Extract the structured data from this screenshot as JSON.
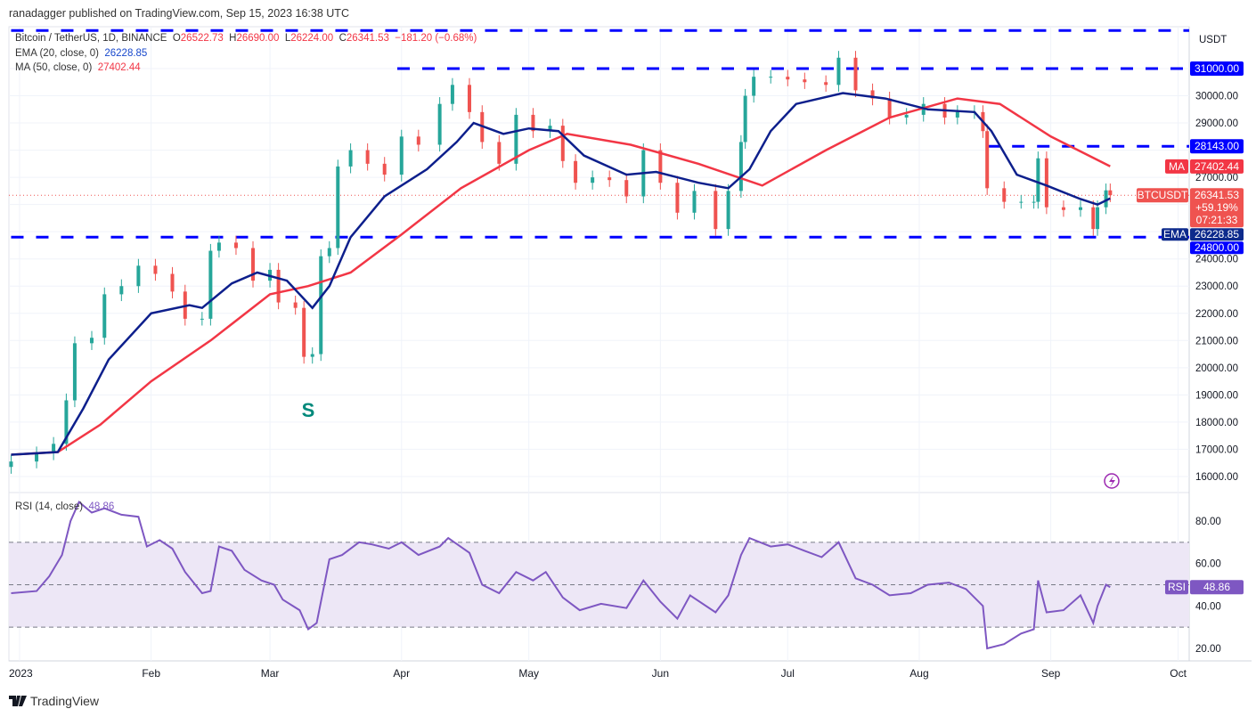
{
  "header": {
    "published": "ranadagger published on TradingView.com, Sep 15, 2023 16:38 UTC",
    "symbol": "Bitcoin / TetherUS, 1D, BINANCE",
    "o_label": "O",
    "o": "26522.73",
    "h_label": "H",
    "h": "26690.00",
    "l_label": "L",
    "l": "26224.00",
    "c_label": "C",
    "c": "26341.53",
    "change": "−181.20 (−0.68%)",
    "ema_label": "EMA (20, close, 0)",
    "ema_value": "26228.85",
    "ma_label": "MA (50, close, 0)",
    "ma_value": "27402.44",
    "rsi_label": "RSI (14, close)",
    "rsi_value": "48.86"
  },
  "footer": {
    "brand": "TradingView",
    "icon": "tradingview-logo-icon"
  },
  "colors": {
    "up": "#26a69a",
    "down": "#ef5350",
    "ema": "#0d1f8c",
    "ma": "#f23645",
    "levels": "#0000ff",
    "rsi": "#7e57c2",
    "rsi_band": "#ede7f6"
  },
  "chart_data": [
    {
      "type": "candlestick",
      "currency_label": "USDT",
      "ylim": [
        15600,
        32500
      ],
      "y_ticks": [
        "16000.00",
        "17000.00",
        "18000.00",
        "19000.00",
        "20000.00",
        "21000.00",
        "22000.00",
        "23000.00",
        "24000.00",
        "27000.00",
        "29000.00",
        "30000.00"
      ],
      "x_ticks": [
        {
          "label": "2023",
          "date": "2023-01-01"
        },
        {
          "label": "Feb",
          "date": "2023-02-01"
        },
        {
          "label": "Mar",
          "date": "2023-03-01"
        },
        {
          "label": "Apr",
          "date": "2023-04-01"
        },
        {
          "label": "May",
          "date": "2023-05-01"
        },
        {
          "label": "Jun",
          "date": "2023-06-01"
        },
        {
          "label": "Jul",
          "date": "2023-07-01"
        },
        {
          "label": "Aug",
          "date": "2023-08-01"
        },
        {
          "label": "Sep",
          "date": "2023-09-01"
        },
        {
          "label": "Oct",
          "date": "2023-10-01"
        }
      ],
      "close": [
        [
          "2022-12-30",
          16550
        ],
        [
          "2023-01-05",
          16850
        ],
        [
          "2023-01-09",
          17200
        ],
        [
          "2023-01-12",
          18800
        ],
        [
          "2023-01-14",
          20900
        ],
        [
          "2023-01-18",
          21100
        ],
        [
          "2023-01-21",
          22700
        ],
        [
          "2023-01-25",
          23000
        ],
        [
          "2023-01-29",
          23750
        ],
        [
          "2023-02-02",
          23450
        ],
        [
          "2023-02-06",
          22800
        ],
        [
          "2023-02-09",
          21800
        ],
        [
          "2023-02-13",
          21800
        ],
        [
          "2023-02-15",
          24300
        ],
        [
          "2023-02-17",
          24600
        ],
        [
          "2023-02-21",
          24400
        ],
        [
          "2023-02-25",
          23200
        ],
        [
          "2023-03-01",
          23600
        ],
        [
          "2023-03-03",
          22400
        ],
        [
          "2023-03-07",
          22200
        ],
        [
          "2023-03-09",
          20400
        ],
        [
          "2023-03-11",
          20500
        ],
        [
          "2023-03-13",
          24100
        ],
        [
          "2023-03-15",
          24400
        ],
        [
          "2023-03-17",
          27400
        ],
        [
          "2023-03-20",
          28000
        ],
        [
          "2023-03-24",
          27500
        ],
        [
          "2023-03-28",
          27100
        ],
        [
          "2023-04-01",
          28500
        ],
        [
          "2023-04-05",
          28200
        ],
        [
          "2023-04-10",
          29700
        ],
        [
          "2023-04-13",
          30400
        ],
        [
          "2023-04-17",
          29400
        ],
        [
          "2023-04-20",
          28300
        ],
        [
          "2023-04-24",
          27500
        ],
        [
          "2023-04-28",
          29300
        ],
        [
          "2023-05-02",
          28700
        ],
        [
          "2023-05-06",
          28900
        ],
        [
          "2023-05-09",
          27600
        ],
        [
          "2023-05-12",
          26800
        ],
        [
          "2023-05-16",
          27000
        ],
        [
          "2023-05-20",
          26900
        ],
        [
          "2023-05-24",
          26300
        ],
        [
          "2023-05-28",
          28000
        ],
        [
          "2023-06-01",
          26800
        ],
        [
          "2023-06-05",
          25700
        ],
        [
          "2023-06-09",
          26500
        ],
        [
          "2023-06-14",
          25100
        ],
        [
          "2023-06-17",
          26500
        ],
        [
          "2023-06-20",
          28300
        ],
        [
          "2023-06-21",
          30000
        ],
        [
          "2023-06-23",
          30700
        ],
        [
          "2023-06-27",
          30700
        ],
        [
          "2023-07-01",
          30600
        ],
        [
          "2023-07-05",
          30500
        ],
        [
          "2023-07-10",
          30400
        ],
        [
          "2023-07-13",
          31400
        ],
        [
          "2023-07-17",
          30200
        ],
        [
          "2023-07-21",
          29900
        ],
        [
          "2023-07-25",
          29200
        ],
        [
          "2023-07-29",
          29300
        ],
        [
          "2023-08-02",
          29700
        ],
        [
          "2023-08-07",
          29200
        ],
        [
          "2023-08-10",
          29400
        ],
        [
          "2023-08-14",
          29400
        ],
        [
          "2023-08-16",
          28700
        ],
        [
          "2023-08-17",
          26600
        ],
        [
          "2023-08-21",
          26100
        ],
        [
          "2023-08-25",
          26100
        ],
        [
          "2023-08-28",
          26100
        ],
        [
          "2023-08-29",
          27700
        ],
        [
          "2023-08-31",
          25900
        ],
        [
          "2023-09-04",
          25800
        ],
        [
          "2023-09-08",
          25900
        ],
        [
          "2023-09-11",
          25100
        ],
        [
          "2023-09-12",
          25900
        ],
        [
          "2023-09-14",
          26522.73
        ],
        [
          "2023-09-15",
          26341.53
        ]
      ],
      "ema20": [
        [
          "2022-12-30",
          16800
        ],
        [
          "2023-01-10",
          16900
        ],
        [
          "2023-01-16",
          18500
        ],
        [
          "2023-01-22",
          20300
        ],
        [
          "2023-02-01",
          22000
        ],
        [
          "2023-02-10",
          22300
        ],
        [
          "2023-02-13",
          22200
        ],
        [
          "2023-02-20",
          23100
        ],
        [
          "2023-02-26",
          23500
        ],
        [
          "2023-03-05",
          23200
        ],
        [
          "2023-03-11",
          22200
        ],
        [
          "2023-03-15",
          23000
        ],
        [
          "2023-03-20",
          24800
        ],
        [
          "2023-03-28",
          26300
        ],
        [
          "2023-04-07",
          27300
        ],
        [
          "2023-04-14",
          28300
        ],
        [
          "2023-04-18",
          29000
        ],
        [
          "2023-04-25",
          28600
        ],
        [
          "2023-05-01",
          28800
        ],
        [
          "2023-05-08",
          28700
        ],
        [
          "2023-05-14",
          27800
        ],
        [
          "2023-05-24",
          27100
        ],
        [
          "2023-05-31",
          27200
        ],
        [
          "2023-06-10",
          26800
        ],
        [
          "2023-06-17",
          26600
        ],
        [
          "2023-06-22",
          27300
        ],
        [
          "2023-06-27",
          28700
        ],
        [
          "2023-07-03",
          29700
        ],
        [
          "2023-07-14",
          30100
        ],
        [
          "2023-07-24",
          29900
        ],
        [
          "2023-08-03",
          29500
        ],
        [
          "2023-08-14",
          29400
        ],
        [
          "2023-08-18",
          28700
        ],
        [
          "2023-08-24",
          27100
        ],
        [
          "2023-08-31",
          26700
        ],
        [
          "2023-09-08",
          26200
        ],
        [
          "2023-09-12",
          26000
        ],
        [
          "2023-09-15",
          26228.85
        ]
      ],
      "ma50": [
        [
          "2022-12-30",
          16800
        ],
        [
          "2023-01-10",
          16900
        ],
        [
          "2023-01-20",
          17900
        ],
        [
          "2023-02-01",
          19500
        ],
        [
          "2023-02-15",
          21000
        ],
        [
          "2023-03-01",
          22700
        ],
        [
          "2023-03-10",
          23000
        ],
        [
          "2023-03-20",
          23500
        ],
        [
          "2023-04-01",
          24900
        ],
        [
          "2023-04-15",
          26600
        ],
        [
          "2023-05-01",
          28000
        ],
        [
          "2023-05-10",
          28600
        ],
        [
          "2023-05-25",
          28200
        ],
        [
          "2023-06-10",
          27500
        ],
        [
          "2023-06-25",
          26700
        ],
        [
          "2023-07-10",
          28000
        ],
        [
          "2023-07-25",
          29200
        ],
        [
          "2023-08-10",
          29900
        ],
        [
          "2023-08-20",
          29700
        ],
        [
          "2023-09-01",
          28500
        ],
        [
          "2023-09-15",
          27402.44
        ]
      ],
      "levels": [
        {
          "price": 32400,
          "from": "2022-12-30",
          "label": ""
        },
        {
          "price": 31000,
          "from": "2023-03-31",
          "label": "31000.00"
        },
        {
          "price": 28143,
          "from": "2023-08-17",
          "label": "28143.00"
        },
        {
          "price": 24800,
          "from": "2022-12-30",
          "label": "24800.00"
        }
      ],
      "price_tags": {
        "ma_tag": "MA",
        "ma": "27402.44",
        "sym_tag": "BTCUSDT",
        "last": "26341.53",
        "pct": "+59.19%",
        "countdown": "07:21:33",
        "ema_tag": "EMA",
        "ema": "26228.85"
      },
      "annotation": {
        "text": "S",
        "date": "2023-03-10",
        "price": 18450
      },
      "alert_icon": "lightning-bolt-icon"
    },
    {
      "type": "line",
      "name": "RSI (14, close)",
      "ylim": [
        15,
        95
      ],
      "y_ticks": [
        "80.00",
        "60.00",
        "40.00",
        "20.00"
      ],
      "band": [
        30,
        70
      ],
      "midline": 50,
      "last_tag": "RSI",
      "last": "48.86",
      "values": [
        [
          "2022-12-30",
          46
        ],
        [
          "2023-01-05",
          47
        ],
        [
          "2023-01-08",
          54
        ],
        [
          "2023-01-11",
          64
        ],
        [
          "2023-01-13",
          80
        ],
        [
          "2023-01-15",
          89
        ],
        [
          "2023-01-18",
          84
        ],
        [
          "2023-01-21",
          86
        ],
        [
          "2023-01-25",
          83
        ],
        [
          "2023-01-29",
          82
        ],
        [
          "2023-01-31",
          68
        ],
        [
          "2023-02-03",
          71
        ],
        [
          "2023-02-06",
          67
        ],
        [
          "2023-02-09",
          56
        ],
        [
          "2023-02-13",
          46
        ],
        [
          "2023-02-15",
          47
        ],
        [
          "2023-02-17",
          68
        ],
        [
          "2023-02-20",
          66
        ],
        [
          "2023-02-23",
          57
        ],
        [
          "2023-02-27",
          52
        ],
        [
          "2023-03-02",
          50
        ],
        [
          "2023-03-04",
          43
        ],
        [
          "2023-03-08",
          38
        ],
        [
          "2023-03-10",
          29
        ],
        [
          "2023-03-12",
          32
        ],
        [
          "2023-03-15",
          62
        ],
        [
          "2023-03-18",
          64
        ],
        [
          "2023-03-22",
          70
        ],
        [
          "2023-03-25",
          69
        ],
        [
          "2023-03-29",
          67
        ],
        [
          "2023-04-01",
          70
        ],
        [
          "2023-04-05",
          64
        ],
        [
          "2023-04-10",
          68
        ],
        [
          "2023-04-12",
          72
        ],
        [
          "2023-04-17",
          65
        ],
        [
          "2023-04-20",
          50
        ],
        [
          "2023-04-24",
          46
        ],
        [
          "2023-04-28",
          56
        ],
        [
          "2023-05-02",
          52
        ],
        [
          "2023-05-05",
          56
        ],
        [
          "2023-05-09",
          44
        ],
        [
          "2023-05-13",
          38
        ],
        [
          "2023-05-18",
          41
        ],
        [
          "2023-05-24",
          39
        ],
        [
          "2023-05-28",
          52
        ],
        [
          "2023-06-01",
          42
        ],
        [
          "2023-06-05",
          34
        ],
        [
          "2023-06-08",
          45
        ],
        [
          "2023-06-14",
          37
        ],
        [
          "2023-06-17",
          45
        ],
        [
          "2023-06-20",
          64
        ],
        [
          "2023-06-22",
          72
        ],
        [
          "2023-06-27",
          68
        ],
        [
          "2023-07-01",
          69
        ],
        [
          "2023-07-05",
          66
        ],
        [
          "2023-07-09",
          63
        ],
        [
          "2023-07-13",
          70
        ],
        [
          "2023-07-17",
          53
        ],
        [
          "2023-07-21",
          50
        ],
        [
          "2023-07-25",
          45
        ],
        [
          "2023-07-30",
          46
        ],
        [
          "2023-08-03",
          50
        ],
        [
          "2023-08-08",
          51
        ],
        [
          "2023-08-12",
          48
        ],
        [
          "2023-08-16",
          40
        ],
        [
          "2023-08-17",
          20
        ],
        [
          "2023-08-21",
          22
        ],
        [
          "2023-08-25",
          27
        ],
        [
          "2023-08-28",
          29
        ],
        [
          "2023-08-29",
          52
        ],
        [
          "2023-08-31",
          37
        ],
        [
          "2023-09-04",
          38
        ],
        [
          "2023-09-08",
          45
        ],
        [
          "2023-09-11",
          32
        ],
        [
          "2023-09-12",
          40
        ],
        [
          "2023-09-14",
          50
        ],
        [
          "2023-09-15",
          48.86
        ]
      ]
    }
  ]
}
